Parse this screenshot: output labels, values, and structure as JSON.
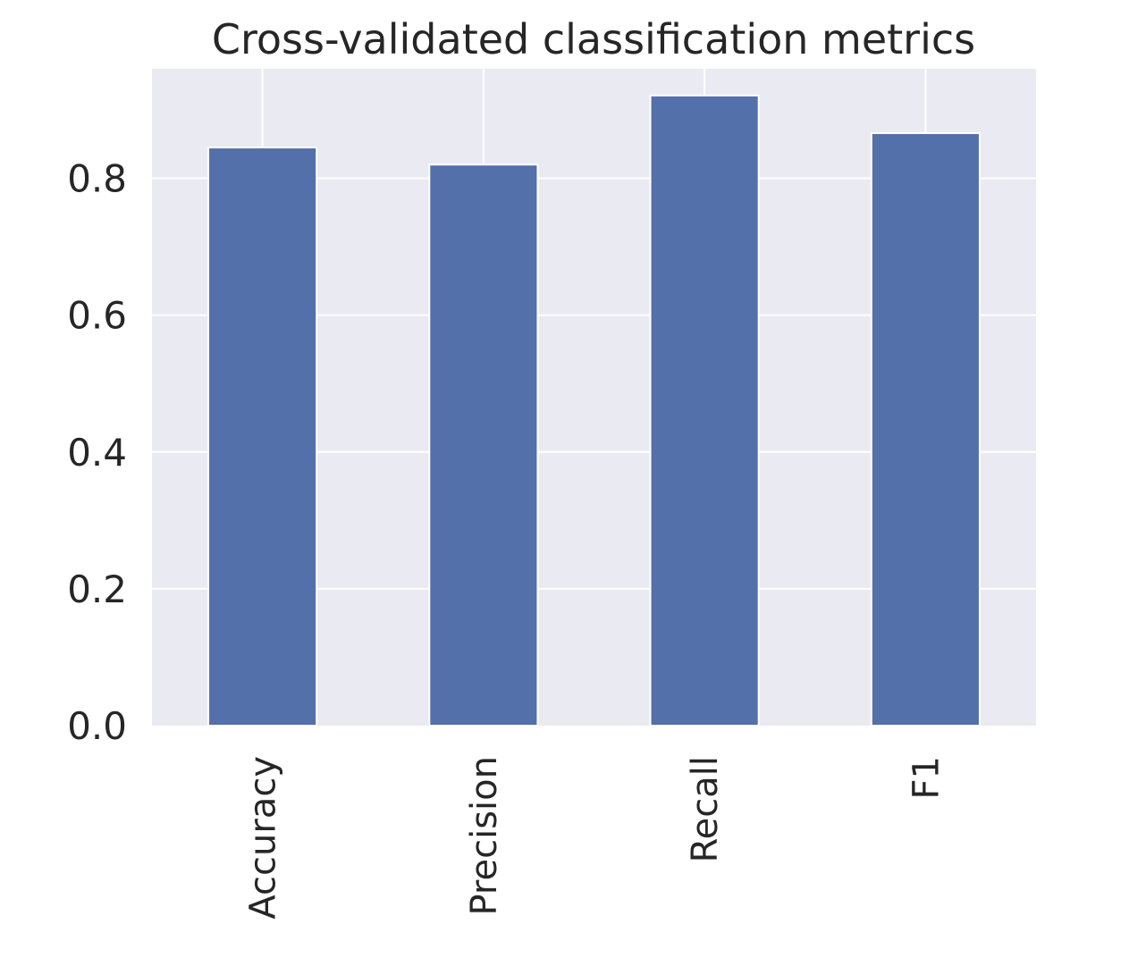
{
  "chart_data": {
    "type": "bar",
    "title": "Cross-validated classification metrics",
    "xlabel": "",
    "ylabel": "",
    "categories": [
      "Accuracy",
      "Precision",
      "Recall",
      "F1"
    ],
    "values": [
      0.845,
      0.82,
      0.921,
      0.866
    ],
    "ylim": [
      0,
      0.96
    ],
    "yticks": [
      0.0,
      0.2,
      0.4,
      0.6,
      0.8
    ],
    "ytick_labels": [
      "0.0",
      "0.2",
      "0.4",
      "0.6",
      "0.8"
    ],
    "grid": true,
    "legend": "none",
    "colors": {
      "bar": "#5470aa",
      "plot_background": "#eaeaf2",
      "grid": "#ffffff",
      "text": "#262626"
    }
  }
}
